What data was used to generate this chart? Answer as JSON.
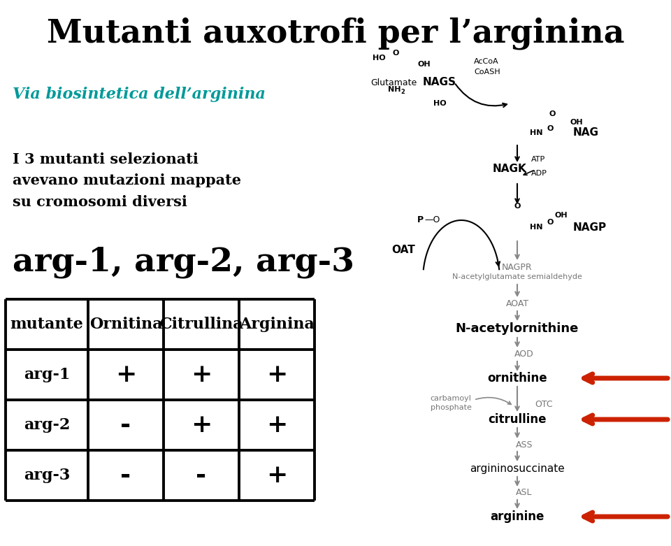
{
  "title": "Mutanti auxotrofi per l’arginina",
  "title_color": "#000000",
  "subtitle1_color": "#009999",
  "subtitle1": "Via biosintetica dell’arginina",
  "text1": "I 3 mutanti selezionati\navevano mutazioni mappate\nsu cromosomi diversi",
  "text2": "arg-1, arg-2, arg-3",
  "table_headers": [
    "mutante",
    "Ornitina",
    "Citrullina",
    "Arginina"
  ],
  "table_rows": [
    [
      "arg-1",
      "+",
      "+",
      "+"
    ],
    [
      "arg-2",
      "-",
      "+",
      "+"
    ],
    [
      "arg-3",
      "-",
      "-",
      "+"
    ]
  ],
  "bg_color": "#ffffff",
  "arrow_color": "#cc2200",
  "pathway_color": "#777777",
  "fig_w": 9.6,
  "fig_h": 7.81,
  "dpi": 100
}
